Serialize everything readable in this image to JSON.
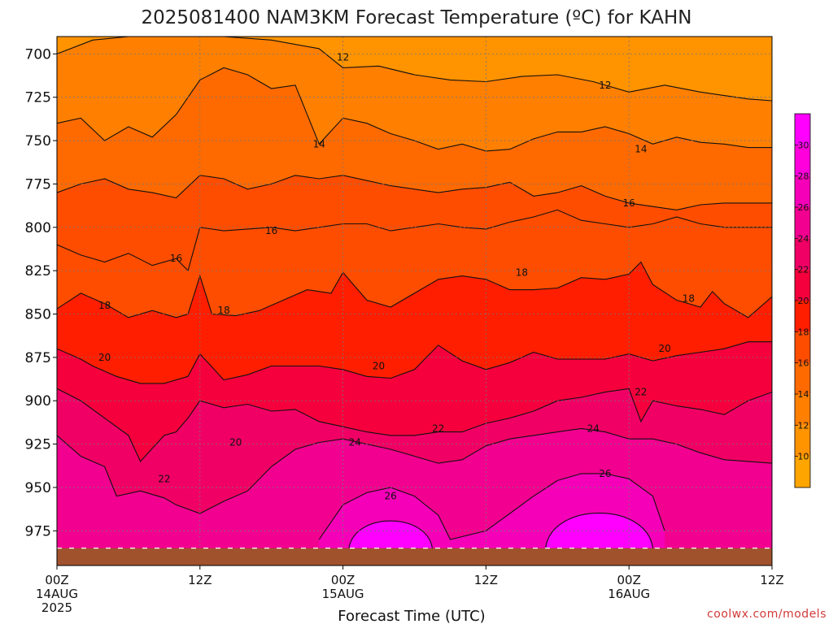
{
  "chart_data": {
    "type": "heatmap",
    "title": "2025081400 NAM3KM Forecast Temperature (ºC) for KAHN",
    "xlabel": "Forecast Time (UTC)",
    "ylabel": "",
    "source": "coolwx.com/models",
    "x_ticks": [
      {
        "label": "00Z",
        "date": "14AUG",
        "year": "2025",
        "hour": 0
      },
      {
        "label": "12Z",
        "date": "",
        "year": "",
        "hour": 12
      },
      {
        "label": "00Z",
        "date": "15AUG",
        "year": "",
        "hour": 24
      },
      {
        "label": "12Z",
        "date": "",
        "year": "",
        "hour": 36
      },
      {
        "label": "00Z",
        "date": "16AUG",
        "year": "",
        "hour": 48
      },
      {
        "label": "12Z",
        "date": "",
        "year": "",
        "hour": 60
      }
    ],
    "xlim": [
      0,
      60
    ],
    "y_ticks": [
      "700",
      "725",
      "750",
      "775",
      "800",
      "825",
      "850",
      "875",
      "900",
      "925",
      "950",
      "975"
    ],
    "ylim": [
      690,
      995
    ],
    "y_inverted": true,
    "ground_pressure": 985,
    "ground_color": "#a0522d",
    "colorbar": {
      "min": 8,
      "max": 32,
      "step": 2,
      "labels": [
        "10",
        "12",
        "14",
        "16",
        "18",
        "20",
        "22",
        "24",
        "26",
        "28",
        "30"
      ],
      "colors": [
        "#ffa500",
        "#ff9300",
        "#ff7f00",
        "#ff6a00",
        "#ff4d00",
        "#ff1e00",
        "#f5003c",
        "#f00065",
        "#f20090",
        "#f500b8",
        "#ff00dd",
        "#ff00ff"
      ]
    },
    "isotherms": [
      {
        "temp": 12,
        "points": [
          [
            0,
            700
          ],
          [
            3,
            692
          ],
          [
            6,
            690
          ],
          [
            10,
            690
          ],
          [
            14,
            690
          ],
          [
            18,
            692
          ],
          [
            22,
            697
          ],
          [
            24,
            708
          ],
          [
            27,
            707
          ],
          [
            30,
            712
          ],
          [
            33,
            715
          ],
          [
            36,
            716
          ],
          [
            39,
            713
          ],
          [
            42,
            712
          ],
          [
            45,
            716
          ],
          [
            48,
            722
          ],
          [
            51,
            718
          ],
          [
            54,
            722
          ],
          [
            56,
            724
          ],
          [
            58,
            726
          ],
          [
            60,
            727
          ]
        ]
      },
      {
        "temp": 14,
        "points": [
          [
            0,
            740
          ],
          [
            2,
            737
          ],
          [
            4,
            750
          ],
          [
            6,
            742
          ],
          [
            8,
            748
          ],
          [
            10,
            735
          ],
          [
            12,
            715
          ],
          [
            14,
            708
          ],
          [
            16,
            712
          ],
          [
            18,
            720
          ],
          [
            20,
            718
          ],
          [
            22,
            752
          ],
          [
            24,
            737
          ],
          [
            26,
            740
          ],
          [
            28,
            746
          ],
          [
            30,
            750
          ],
          [
            32,
            755
          ],
          [
            34,
            752
          ],
          [
            36,
            756
          ],
          [
            38,
            755
          ],
          [
            40,
            749
          ],
          [
            42,
            745
          ],
          [
            44,
            745
          ],
          [
            46,
            742
          ],
          [
            48,
            746
          ],
          [
            50,
            752
          ],
          [
            52,
            748
          ],
          [
            54,
            751
          ],
          [
            56,
            752
          ],
          [
            58,
            754
          ],
          [
            60,
            754
          ]
        ]
      },
      {
        "temp": 16,
        "points": [
          [
            0,
            780
          ],
          [
            2,
            775
          ],
          [
            4,
            772
          ],
          [
            6,
            778
          ],
          [
            8,
            780
          ],
          [
            10,
            783
          ],
          [
            12,
            770
          ],
          [
            14,
            772
          ],
          [
            16,
            778
          ],
          [
            18,
            775
          ],
          [
            20,
            770
          ],
          [
            22,
            772
          ],
          [
            24,
            770
          ],
          [
            26,
            773
          ],
          [
            28,
            776
          ],
          [
            30,
            778
          ],
          [
            32,
            780
          ],
          [
            34,
            778
          ],
          [
            36,
            777
          ],
          [
            38,
            774
          ],
          [
            40,
            782
          ],
          [
            42,
            780
          ],
          [
            44,
            776
          ],
          [
            46,
            782
          ],
          [
            48,
            786
          ],
          [
            50,
            788
          ],
          [
            52,
            790
          ],
          [
            54,
            787
          ],
          [
            56,
            786
          ],
          [
            58,
            786
          ],
          [
            60,
            786
          ]
        ]
      },
      {
        "temp": 16,
        "points": [
          [
            0,
            810
          ],
          [
            2,
            816
          ],
          [
            4,
            820
          ],
          [
            6,
            815
          ],
          [
            8,
            822
          ],
          [
            10,
            818
          ],
          [
            11,
            825
          ],
          [
            12,
            800
          ],
          [
            14,
            802
          ],
          [
            16,
            801
          ],
          [
            18,
            800
          ],
          [
            20,
            802
          ],
          [
            22,
            800
          ],
          [
            24,
            798
          ],
          [
            26,
            798
          ],
          [
            28,
            802
          ],
          [
            30,
            800
          ],
          [
            32,
            798
          ],
          [
            34,
            800
          ],
          [
            36,
            801
          ],
          [
            38,
            797
          ],
          [
            40,
            794
          ],
          [
            42,
            790
          ],
          [
            44,
            796
          ],
          [
            46,
            798
          ],
          [
            48,
            800
          ],
          [
            50,
            798
          ],
          [
            52,
            794
          ],
          [
            54,
            798
          ],
          [
            56,
            800
          ],
          [
            58,
            800
          ],
          [
            60,
            800
          ]
        ]
      },
      {
        "temp": 18,
        "points": [
          [
            0,
            847
          ],
          [
            2,
            838
          ],
          [
            4,
            844
          ],
          [
            6,
            852
          ],
          [
            8,
            848
          ],
          [
            10,
            852
          ],
          [
            11,
            850
          ],
          [
            12,
            828
          ],
          [
            13,
            850
          ],
          [
            15,
            851
          ],
          [
            17,
            848
          ],
          [
            19,
            842
          ],
          [
            21,
            836
          ],
          [
            23,
            838
          ],
          [
            24,
            826
          ],
          [
            26,
            842
          ],
          [
            28,
            846
          ],
          [
            30,
            838
          ],
          [
            32,
            830
          ],
          [
            34,
            828
          ],
          [
            36,
            830
          ],
          [
            38,
            836
          ],
          [
            40,
            836
          ],
          [
            42,
            835
          ],
          [
            44,
            829
          ],
          [
            46,
            830
          ],
          [
            48,
            827
          ],
          [
            49,
            820
          ],
          [
            50,
            833
          ],
          [
            52,
            842
          ],
          [
            54,
            846
          ],
          [
            55,
            837
          ],
          [
            56,
            844
          ],
          [
            58,
            852
          ],
          [
            60,
            840
          ]
        ]
      },
      {
        "temp": 20,
        "points": [
          [
            0,
            870
          ],
          [
            2,
            876
          ],
          [
            3,
            880
          ],
          [
            5,
            886
          ],
          [
            7,
            890
          ],
          [
            9,
            890
          ],
          [
            11,
            886
          ],
          [
            12,
            873
          ],
          [
            14,
            888
          ],
          [
            16,
            885
          ],
          [
            18,
            880
          ],
          [
            20,
            880
          ],
          [
            22,
            880
          ],
          [
            24,
            882
          ],
          [
            26,
            886
          ],
          [
            28,
            887
          ],
          [
            30,
            882
          ],
          [
            32,
            868
          ],
          [
            34,
            877
          ],
          [
            36,
            882
          ],
          [
            38,
            878
          ],
          [
            40,
            872
          ],
          [
            42,
            876
          ],
          [
            44,
            876
          ],
          [
            46,
            876
          ],
          [
            48,
            873
          ],
          [
            50,
            877
          ],
          [
            52,
            874
          ],
          [
            54,
            872
          ],
          [
            56,
            870
          ],
          [
            58,
            866
          ],
          [
            60,
            866
          ]
        ]
      },
      {
        "temp": 22,
        "points": [
          [
            0,
            893
          ],
          [
            2,
            900
          ],
          [
            4,
            910
          ],
          [
            6,
            920
          ],
          [
            7,
            935
          ],
          [
            9,
            920
          ],
          [
            10,
            918
          ],
          [
            11,
            910
          ],
          [
            12,
            900
          ],
          [
            14,
            904
          ],
          [
            16,
            902
          ],
          [
            18,
            906
          ],
          [
            20,
            905
          ],
          [
            22,
            912
          ],
          [
            24,
            915
          ],
          [
            26,
            918
          ],
          [
            28,
            920
          ],
          [
            30,
            920
          ],
          [
            32,
            918
          ],
          [
            34,
            918
          ],
          [
            36,
            913
          ],
          [
            38,
            910
          ],
          [
            40,
            906
          ],
          [
            42,
            900
          ],
          [
            44,
            898
          ],
          [
            46,
            895
          ],
          [
            48,
            893
          ],
          [
            49,
            912
          ],
          [
            50,
            900
          ],
          [
            52,
            903
          ],
          [
            54,
            905
          ],
          [
            56,
            908
          ],
          [
            58,
            900
          ],
          [
            60,
            895
          ]
        ]
      },
      {
        "temp": 24,
        "points": [
          [
            0,
            920
          ],
          [
            2,
            932
          ],
          [
            4,
            938
          ],
          [
            5,
            955
          ],
          [
            7,
            952
          ],
          [
            9,
            956
          ],
          [
            10,
            960
          ],
          [
            12,
            965
          ],
          [
            14,
            958
          ],
          [
            16,
            952
          ],
          [
            18,
            938
          ],
          [
            20,
            928
          ],
          [
            22,
            924
          ],
          [
            24,
            922
          ],
          [
            26,
            925
          ],
          [
            28,
            928
          ],
          [
            30,
            932
          ],
          [
            32,
            936
          ],
          [
            34,
            934
          ],
          [
            36,
            926
          ],
          [
            38,
            922
          ],
          [
            40,
            920
          ],
          [
            42,
            918
          ],
          [
            44,
            916
          ],
          [
            46,
            918
          ],
          [
            48,
            922
          ],
          [
            50,
            922
          ],
          [
            52,
            925
          ],
          [
            54,
            930
          ],
          [
            56,
            934
          ],
          [
            58,
            935
          ],
          [
            60,
            936
          ]
        ]
      },
      {
        "temp": 26,
        "points": [
          [
            22,
            980
          ],
          [
            24,
            960
          ],
          [
            26,
            953
          ],
          [
            28,
            950
          ],
          [
            30,
            955
          ],
          [
            32,
            966
          ],
          [
            33,
            980
          ],
          [
            36,
            975
          ],
          [
            38,
            965
          ],
          [
            40,
            955
          ],
          [
            42,
            946
          ],
          [
            44,
            942
          ],
          [
            46,
            942
          ],
          [
            48,
            945
          ],
          [
            50,
            955
          ],
          [
            51,
            975
          ]
        ]
      }
    ],
    "contour_labels": [
      {
        "text": "12",
        "x": 24,
        "y": 702
      },
      {
        "text": "12",
        "x": 46,
        "y": 718
      },
      {
        "text": "14",
        "x": 22,
        "y": 752
      },
      {
        "text": "14",
        "x": 49,
        "y": 755
      },
      {
        "text": "16",
        "x": 48,
        "y": 786
      },
      {
        "text": "16",
        "x": 18,
        "y": 802
      },
      {
        "text": "16",
        "x": 10,
        "y": 818
      },
      {
        "text": "18",
        "x": 4,
        "y": 845
      },
      {
        "text": "18",
        "x": 14,
        "y": 848
      },
      {
        "text": "18",
        "x": 39,
        "y": 826
      },
      {
        "text": "18",
        "x": 53,
        "y": 841
      },
      {
        "text": "20",
        "x": 4,
        "y": 875
      },
      {
        "text": "20",
        "x": 27,
        "y": 880
      },
      {
        "text": "20",
        "x": 51,
        "y": 870
      },
      {
        "text": "20",
        "x": 15,
        "y": 924
      },
      {
        "text": "22",
        "x": 32,
        "y": 916
      },
      {
        "text": "22",
        "x": 49,
        "y": 895
      },
      {
        "text": "22",
        "x": 9,
        "y": 945
      },
      {
        "text": "24",
        "x": 25,
        "y": 924
      },
      {
        "text": "24",
        "x": 45,
        "y": 916
      },
      {
        "text": "26",
        "x": 28,
        "y": 955
      },
      {
        "text": "26",
        "x": 46,
        "y": 942
      }
    ]
  }
}
